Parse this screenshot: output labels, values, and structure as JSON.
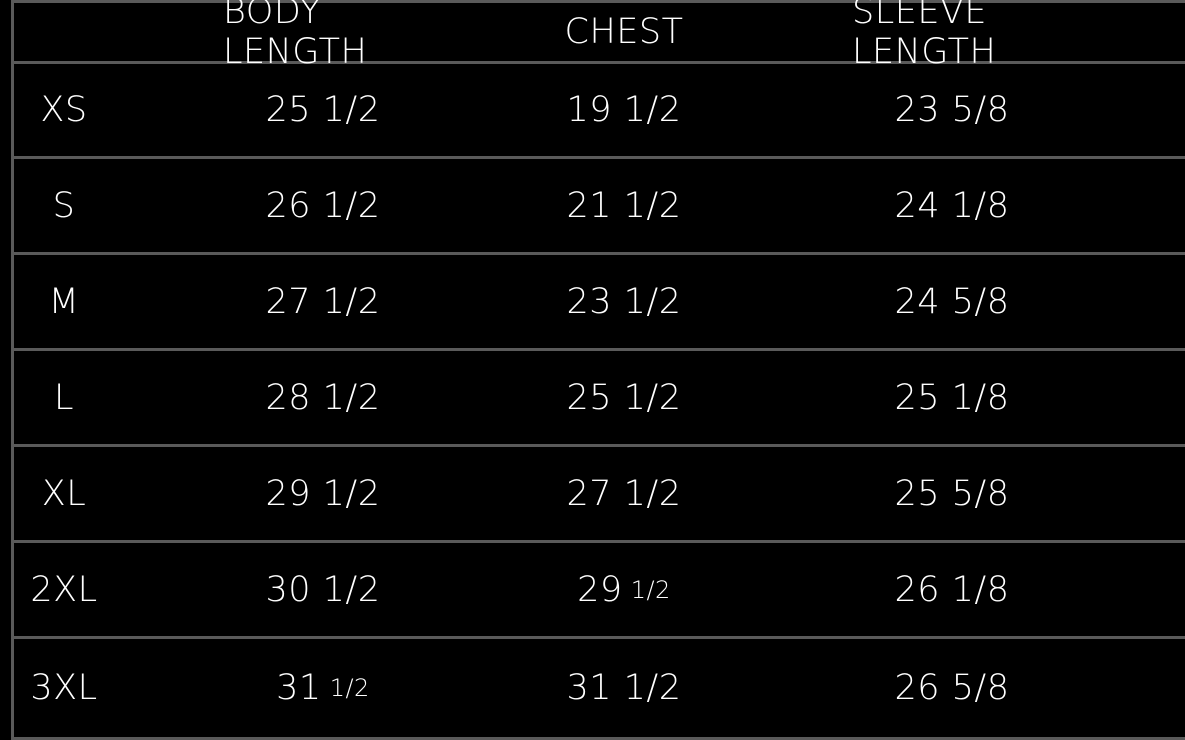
{
  "headers": [
    "",
    "BODY LENGTH",
    "CHEST",
    "SLEEVE LENGTH"
  ],
  "rows": [
    {
      "size": "XS",
      "body": "25 1/2",
      "body_sup": "",
      "chest": "19 1/2",
      "chest_sup": "",
      "sleeve": "23 5/8"
    },
    {
      "size": "S",
      "body": "26 1/2",
      "body_sup": "",
      "chest": "21 1/2",
      "chest_sup": "",
      "sleeve": "24 1/8"
    },
    {
      "size": "M",
      "body": "27 1/2",
      "body_sup": "",
      "chest": "23 1/2",
      "chest_sup": "",
      "sleeve": "24 5/8"
    },
    {
      "size": "L",
      "body": "28 1/2",
      "body_sup": "",
      "chest": "25 1/2",
      "chest_sup": "",
      "sleeve": "25 1/8"
    },
    {
      "size": "XL",
      "body": "29 1/2",
      "body_sup": "",
      "chest": "27 1/2",
      "chest_sup": "",
      "sleeve": "25 5/8"
    },
    {
      "size": "2XL",
      "body": "30 1/2",
      "body_sup": "",
      "chest": "29",
      "chest_sup": "1/2",
      "sleeve": "26 1/8"
    },
    {
      "size": "3XL",
      "body": "31",
      "body_sup": "1/2",
      "chest": "31 1/2",
      "chest_sup": "",
      "sleeve": "26 5/8"
    }
  ],
  "colors": {
    "background": "#000000",
    "grid": "#5a5a5a",
    "text": "#ffffff"
  }
}
